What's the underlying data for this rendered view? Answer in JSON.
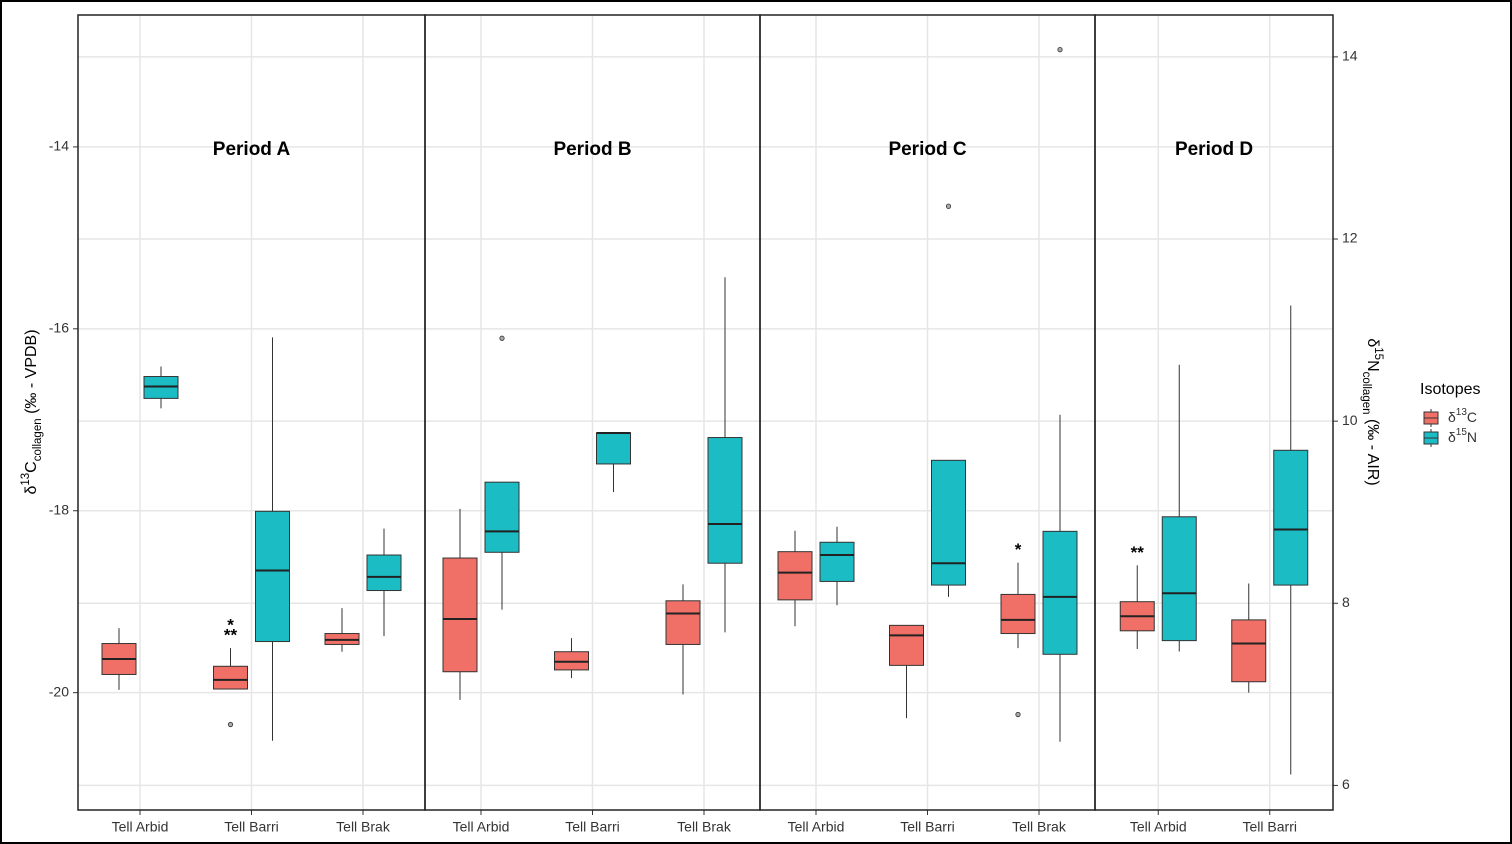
{
  "chart_data": {
    "type": "boxplot",
    "y_label": {
      "delta": "δ",
      "sup": "13",
      "base": "C",
      "sub": "collagen",
      "rest": " (‰ - VPDB)"
    },
    "y2_label": {
      "delta": "δ",
      "sup": "15",
      "base": "N",
      "sub": "collagen",
      "rest": " (‰ - AIR)"
    },
    "ylim": [
      -21.29,
      -12.55
    ],
    "yticks": [
      -20,
      -18,
      -16,
      -14
    ],
    "y2lim": [
      5.73,
      14.46
    ],
    "y2ticks": [
      6,
      8,
      10,
      12,
      14
    ],
    "grid": true,
    "legend": {
      "title": "Isotopes",
      "position": "right"
    },
    "series": [
      {
        "name": {
          "delta": "δ",
          "sup": "13",
          "base": "C"
        },
        "color": "#f07067",
        "axis": "y"
      },
      {
        "name": {
          "delta": "δ",
          "sup": "15",
          "base": "N"
        },
        "color": "#1bbcc4",
        "axis": "y2"
      }
    ],
    "facets": [
      {
        "title": "Period A",
        "categories": [
          "Tell Arbid",
          "Tell Barri",
          "Tell Brak"
        ],
        "boxes": [
          [
            {
              "min": -19.97,
              "q1": -19.8,
              "median": -19.63,
              "q3": -19.46,
              "max": -19.29,
              "outliers": []
            },
            {
              "min": 10.14,
              "q1": 10.25,
              "median": 10.38,
              "q3": 10.49,
              "max": 10.6,
              "outliers": []
            }
          ],
          [
            {
              "min": -19.96,
              "q1": -19.96,
              "median": -19.86,
              "q3": -19.71,
              "max": -19.51,
              "outliers": [
                -20.35
              ],
              "marks": [
                "*",
                "**"
              ]
            },
            {
              "min": 6.49,
              "q1": 7.58,
              "median": 8.36,
              "q3": 9.01,
              "max": 10.92,
              "outliers": []
            }
          ],
          [
            {
              "min": -19.55,
              "q1": -19.47,
              "median": -19.42,
              "q3": -19.35,
              "max": -19.07,
              "outliers": []
            },
            {
              "min": 7.64,
              "q1": 8.14,
              "median": 8.29,
              "q3": 8.53,
              "max": 8.82,
              "outliers": []
            }
          ]
        ]
      },
      {
        "title": "Period B",
        "categories": [
          "Tell Arbid",
          "Tell Barri",
          "Tell Brak"
        ],
        "boxes": [
          [
            {
              "min": -20.08,
              "q1": -19.77,
              "median": -19.19,
              "q3": -18.52,
              "max": -17.98,
              "outliers": []
            },
            {
              "min": 7.93,
              "q1": 8.56,
              "median": 8.79,
              "q3": 9.33,
              "max": 9.33,
              "outliers": [
                10.91
              ]
            }
          ],
          [
            {
              "min": -19.84,
              "q1": -19.75,
              "median": -19.66,
              "q3": -19.55,
              "max": -19.4,
              "outliers": []
            },
            {
              "min": 9.22,
              "q1": 9.53,
              "median": 9.87,
              "q3": 9.87,
              "max": 9.87,
              "outliers": []
            }
          ],
          [
            {
              "min": -20.02,
              "q1": -19.47,
              "median": -19.13,
              "q3": -18.99,
              "max": -18.81,
              "outliers": []
            },
            {
              "min": 7.68,
              "q1": 8.44,
              "median": 8.87,
              "q3": 9.82,
              "max": 11.58,
              "outliers": []
            }
          ]
        ]
      },
      {
        "title": "Period C",
        "categories": [
          "Tell Arbid",
          "Tell Barri",
          "Tell Brak"
        ],
        "boxes": [
          [
            {
              "min": -19.27,
              "q1": -18.98,
              "median": -18.68,
              "q3": -18.45,
              "max": -18.22,
              "outliers": []
            },
            {
              "min": 7.98,
              "q1": 8.24,
              "median": 8.53,
              "q3": 8.67,
              "max": 8.84,
              "outliers": []
            }
          ],
          [
            {
              "min": -20.28,
              "q1": -19.7,
              "median": -19.37,
              "q3": -19.26,
              "max": -19.26,
              "outliers": []
            },
            {
              "min": 8.07,
              "q1": 8.2,
              "median": 8.44,
              "q3": 9.57,
              "max": 9.57,
              "outliers": [
                12.36
              ]
            }
          ],
          [
            {
              "min": -19.51,
              "q1": -19.35,
              "median": -19.2,
              "q3": -18.92,
              "max": -18.57,
              "outliers": [
                -20.24
              ],
              "marks": [
                "*"
              ]
            },
            {
              "min": 6.48,
              "q1": 7.44,
              "median": 8.07,
              "q3": 8.79,
              "max": 10.07,
              "outliers": [
                14.08
              ]
            }
          ]
        ]
      },
      {
        "title": "Period D",
        "categories": [
          "Tell Arbid",
          "Tell Barri"
        ],
        "boxes": [
          [
            {
              "min": -19.52,
              "q1": -19.32,
              "median": -19.16,
              "q3": -19.0,
              "max": -18.6,
              "outliers": [],
              "marks": [
                "**"
              ]
            },
            {
              "min": 7.47,
              "q1": 7.59,
              "median": 8.11,
              "q3": 8.95,
              "max": 10.62,
              "outliers": []
            }
          ],
          [
            {
              "min": -20.0,
              "q1": -19.88,
              "median": -19.46,
              "q3": -19.2,
              "max": -18.8,
              "outliers": []
            },
            {
              "min": 6.12,
              "q1": 8.2,
              "median": 8.81,
              "q3": 9.68,
              "max": 11.27,
              "outliers": []
            }
          ]
        ]
      }
    ]
  }
}
